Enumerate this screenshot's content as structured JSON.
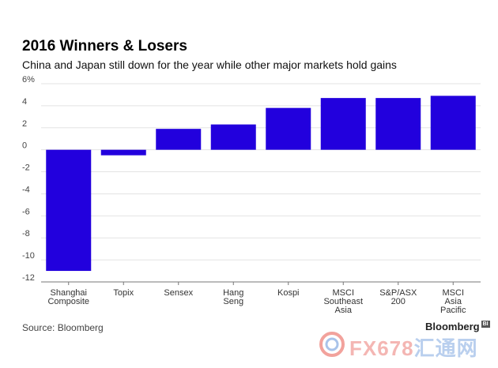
{
  "chart_data": {
    "type": "bar",
    "title": "2016 Winners & Losers",
    "subtitle": "China and Japan still down for the year while other major markets hold gains",
    "categories": [
      [
        "Shanghai",
        "Composite"
      ],
      [
        "Topix"
      ],
      [
        "Sensex"
      ],
      [
        "Hang",
        "Seng"
      ],
      [
        "Kospi"
      ],
      [
        "MSCI",
        "Southeast",
        "Asia"
      ],
      [
        "S&P/ASX",
        "200"
      ],
      [
        "MSCI",
        "Asia",
        "Pacific"
      ]
    ],
    "values": [
      -11.0,
      -0.5,
      1.9,
      2.3,
      3.8,
      4.7,
      4.7,
      4.9
    ],
    "ylim": [
      -12,
      6
    ],
    "yticks": [
      -12,
      -10,
      -8,
      -6,
      -4,
      -2,
      0,
      2,
      4,
      6
    ],
    "ytick_labels": [
      "-12",
      "-10",
      "-8",
      "-6",
      "-4",
      "-2",
      "0",
      "2",
      "4",
      "6%"
    ],
    "bar_color": "#2200dd",
    "grid": true,
    "xlabel": "",
    "ylabel": ""
  },
  "footer": {
    "source": "Source: Bloomberg",
    "brand": "Bloomberg",
    "brand_badge": "BI"
  },
  "watermark": {
    "latin": "FX678",
    "cn": "汇通网"
  }
}
